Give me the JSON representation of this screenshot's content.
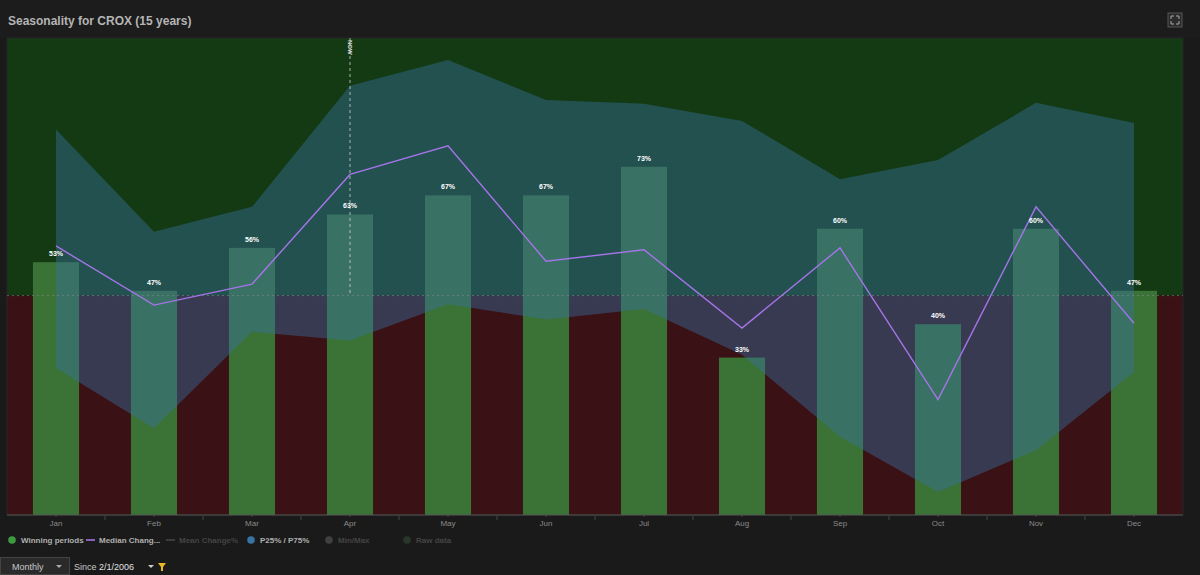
{
  "chart_data": {
    "type": "bar",
    "title": "Seasonality for CROX (15 years)",
    "categories": [
      "Jan",
      "Feb",
      "Mar",
      "Apr",
      "May",
      "Jun",
      "Jul",
      "Aug",
      "Sep",
      "Oct",
      "Nov",
      "Dec"
    ],
    "series": [
      {
        "name": "Winning periods",
        "type": "bar",
        "color": "#3b7236",
        "values": [
          53,
          47,
          56,
          63,
          67,
          67,
          73,
          33,
          60,
          40,
          60,
          47
        ],
        "value_labels": [
          "53%",
          "47%",
          "56%",
          "63%",
          "67%",
          "67%",
          "73%",
          "33%",
          "60%",
          "40%",
          "60%",
          "47%"
        ]
      },
      {
        "name": "Median Chang...",
        "type": "line",
        "color": "#a574e8",
        "axis": "y2",
        "values": [
          5.2,
          -1.0,
          1.2,
          12.7,
          15.7,
          3.6,
          4.8,
          -3.4,
          5.0,
          -10.9,
          9.3,
          -2.9
        ]
      },
      {
        "name": "Mean Change%",
        "type": "line",
        "color": "#7a7a7a",
        "axis": "y2",
        "values": [
          null,
          null,
          null,
          null,
          null,
          null,
          null,
          null,
          null,
          null,
          null,
          null
        ]
      },
      {
        "name": "P25% / P75%",
        "type": "area",
        "color": "#3773a5",
        "axis": "y2",
        "values": [
          17.4,
          6.7,
          9.3,
          22.0,
          24.7,
          20.5,
          20.1,
          18.3,
          12.2,
          14.2,
          20.2,
          18.1
        ],
        "lower": [
          -7.6,
          -13.9,
          -3.8,
          -4.7,
          -0.9,
          -2.5,
          -1.4,
          -6.2,
          -14.8,
          -20.6,
          -16.2,
          -8.0
        ]
      },
      {
        "name": "Min/Max",
        "type": "area",
        "color": "#6e6e6e",
        "axis": "y2",
        "values": [
          null,
          null,
          null,
          null,
          null,
          null,
          null,
          null,
          null,
          null,
          null,
          null
        ]
      },
      {
        "name": "Raw data",
        "type": "scatter",
        "color": "#3c5a3c",
        "axis": "y2",
        "values": [
          null,
          null,
          null,
          null,
          null,
          null,
          null,
          null,
          null,
          null,
          null,
          null
        ]
      }
    ],
    "ylim": [
      0,
      100
    ],
    "yticks": [],
    "y2lim": [
      -23,
      27
    ],
    "y2ticks": [
      0
    ],
    "grid": true,
    "tick_labels": "x",
    "data_labels": true,
    "legend": "bottom",
    "annotations": [
      {
        "text": "NOW",
        "x": "Apr"
      }
    ]
  },
  "controls": {
    "period": "Monthly",
    "since_label": "Since",
    "since": "2/1/2006"
  }
}
